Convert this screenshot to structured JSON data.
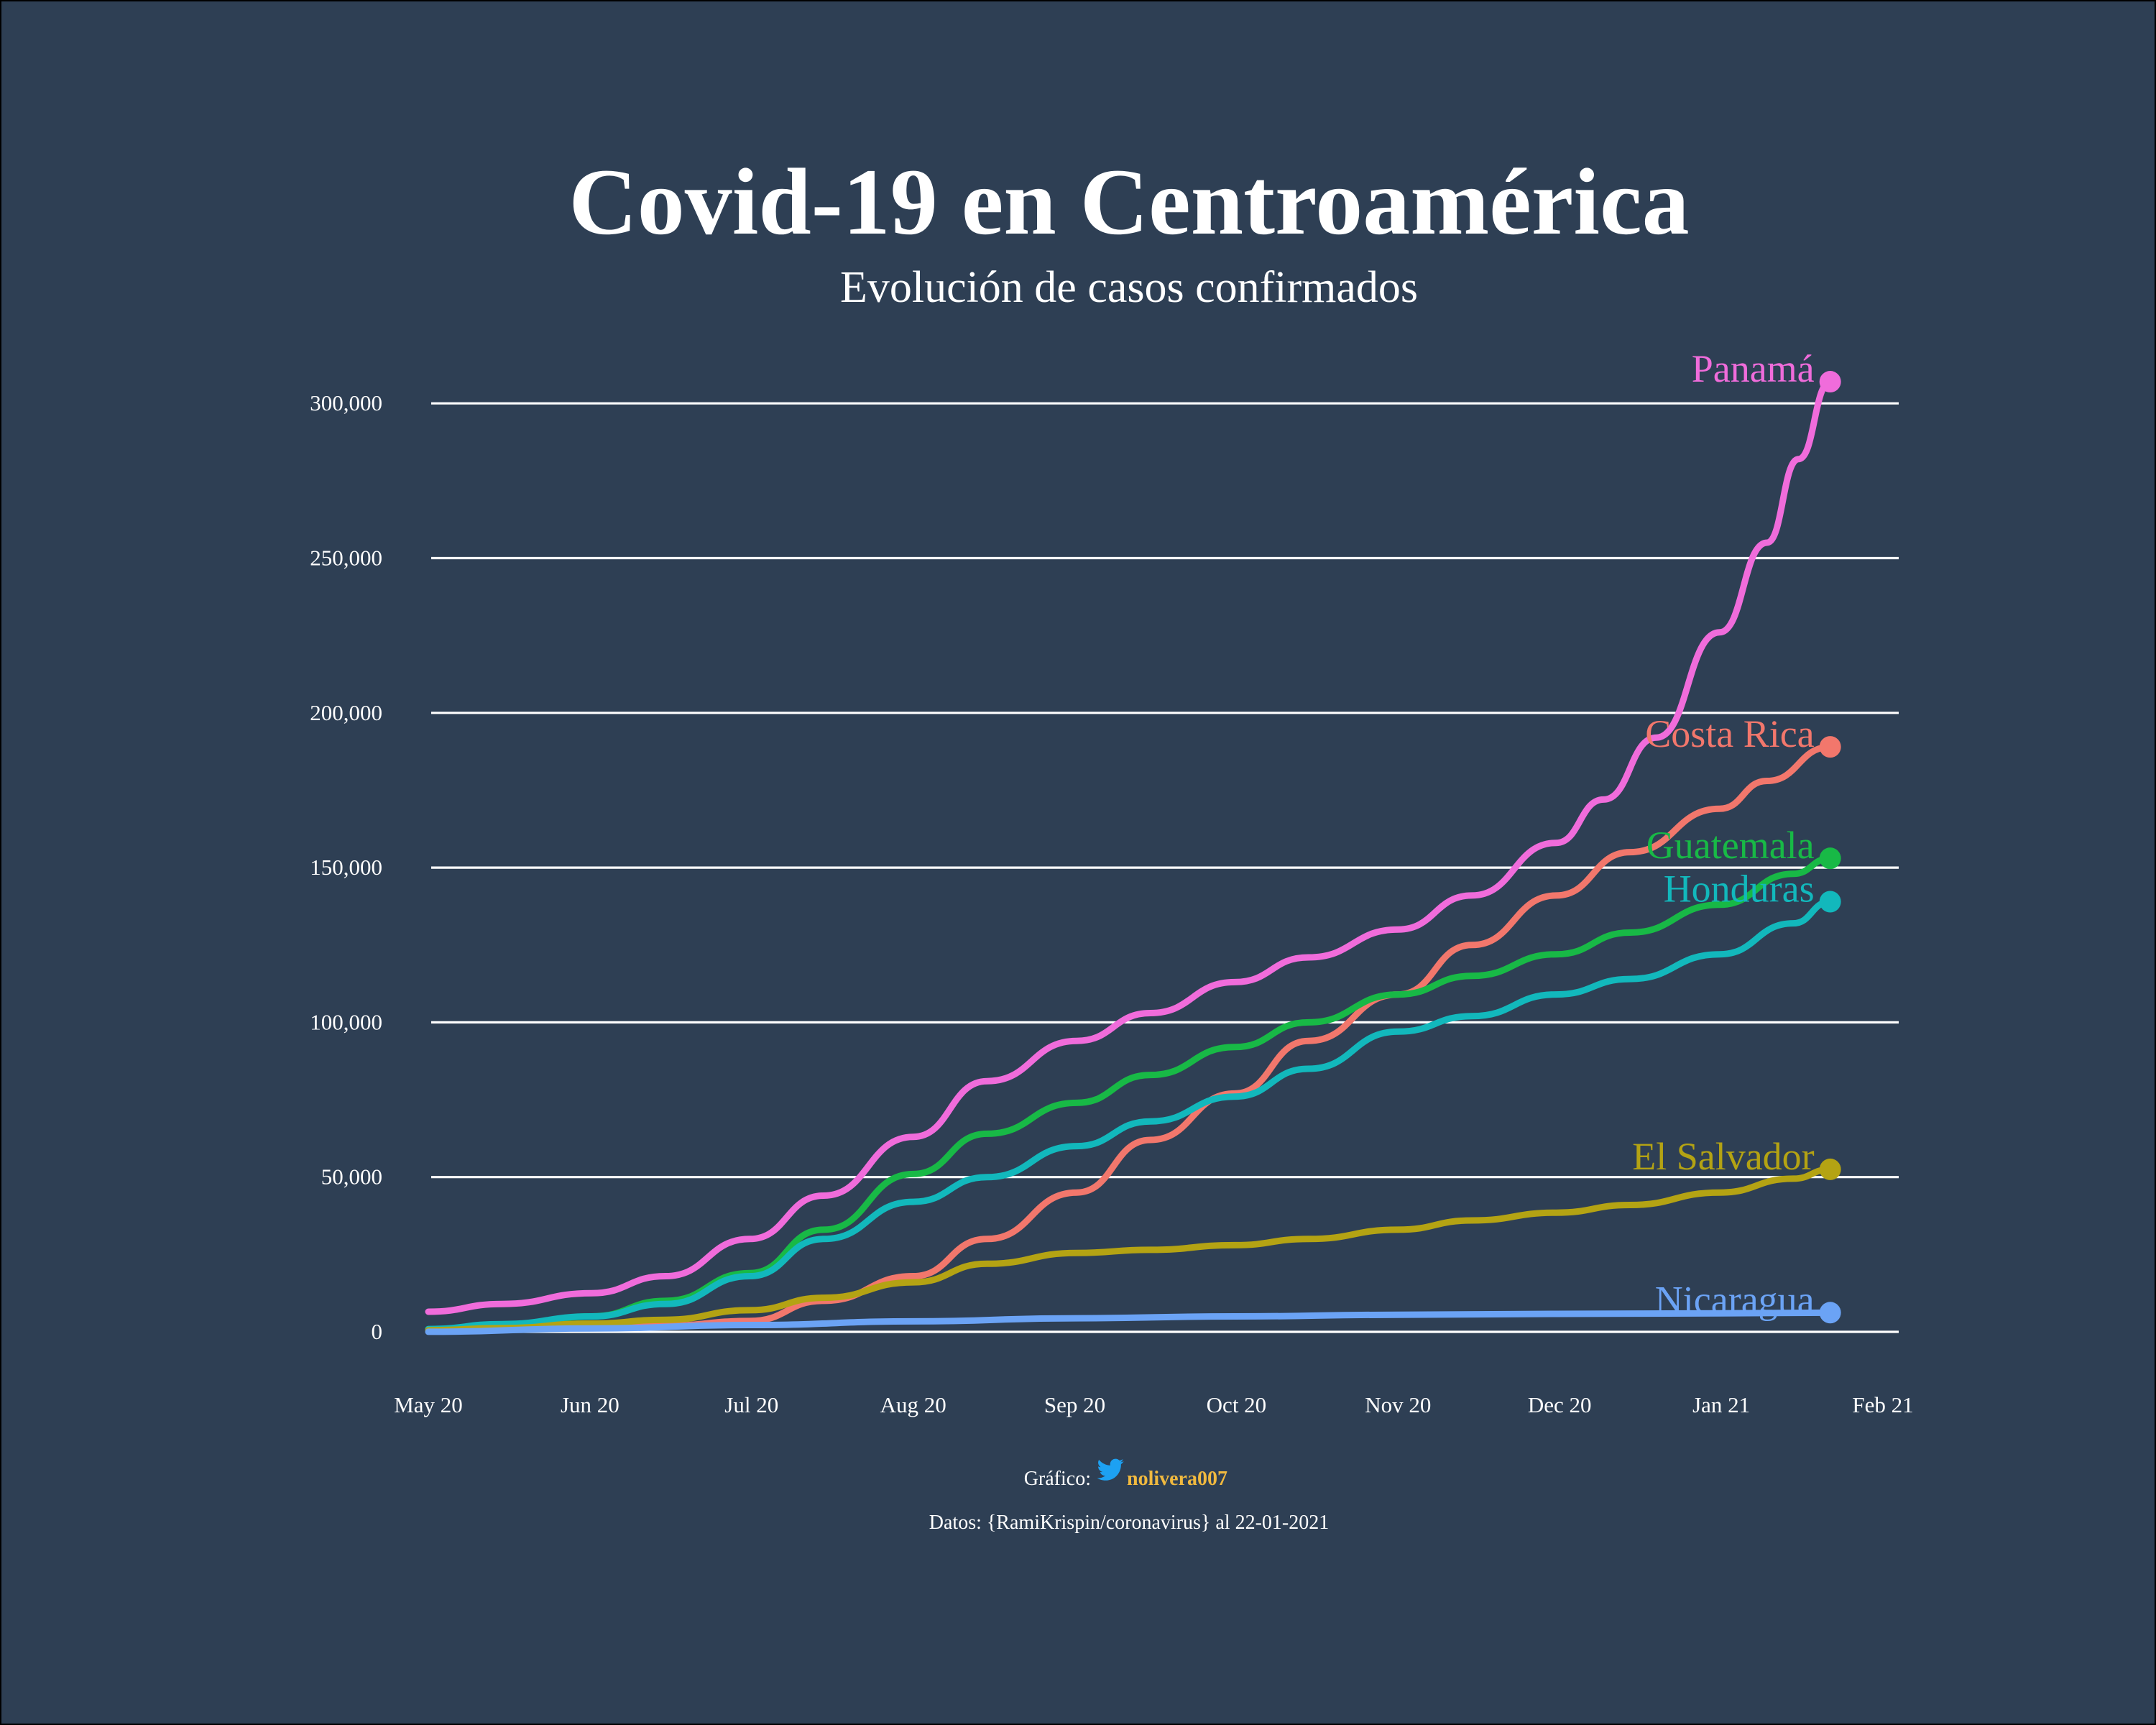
{
  "chart_data": {
    "type": "line",
    "title": "Covid-19 en Centroamérica",
    "subtitle": "Evolución de casos confirmados",
    "x_ticks": [
      "May 20",
      "Jun 20",
      "Jul 20",
      "Aug 20",
      "Sep 20",
      "Oct 20",
      "Nov 20",
      "Dec 20",
      "Jan 21",
      "Feb 21"
    ],
    "x_range": [
      "2020-05-01",
      "2021-02-01"
    ],
    "y_ticks": [
      "0",
      "50,000",
      "100,000",
      "150,000",
      "200,000",
      "250,000",
      "300,000"
    ],
    "ylim": [
      -12000,
      315000
    ],
    "grid": "horizontal",
    "legend": "direct labels at line ends",
    "series": [
      {
        "name": "Panamá",
        "color": "#f06cdb",
        "points": [
          [
            "2020-05-01",
            6500
          ],
          [
            "2020-05-15",
            9000
          ],
          [
            "2020-06-01",
            12500
          ],
          [
            "2020-06-15",
            18000
          ],
          [
            "2020-07-01",
            30000
          ],
          [
            "2020-07-15",
            44000
          ],
          [
            "2020-08-01",
            63000
          ],
          [
            "2020-08-15",
            81000
          ],
          [
            "2020-09-01",
            94000
          ],
          [
            "2020-09-15",
            103000
          ],
          [
            "2020-10-01",
            113000
          ],
          [
            "2020-10-15",
            121000
          ],
          [
            "2020-11-01",
            130000
          ],
          [
            "2020-11-15",
            141000
          ],
          [
            "2020-12-01",
            158000
          ],
          [
            "2020-12-10",
            172000
          ],
          [
            "2020-12-20",
            192000
          ],
          [
            "2021-01-01",
            226000
          ],
          [
            "2021-01-10",
            255000
          ],
          [
            "2021-01-16",
            282000
          ],
          [
            "2021-01-22",
            307000
          ]
        ]
      },
      {
        "name": "Costa Rica",
        "color": "#f2776c",
        "points": [
          [
            "2020-05-01",
            700
          ],
          [
            "2020-06-01",
            1200
          ],
          [
            "2020-06-15",
            2000
          ],
          [
            "2020-07-01",
            3500
          ],
          [
            "2020-07-15",
            10000
          ],
          [
            "2020-08-01",
            18000
          ],
          [
            "2020-08-15",
            30000
          ],
          [
            "2020-09-01",
            45000
          ],
          [
            "2020-09-15",
            62000
          ],
          [
            "2020-10-01",
            77000
          ],
          [
            "2020-10-15",
            94000
          ],
          [
            "2020-11-01",
            109000
          ],
          [
            "2020-11-15",
            125000
          ],
          [
            "2020-12-01",
            141000
          ],
          [
            "2020-12-15",
            155000
          ],
          [
            "2021-01-01",
            169000
          ],
          [
            "2021-01-10",
            178000
          ],
          [
            "2021-01-22",
            189000
          ]
        ]
      },
      {
        "name": "Guatemala",
        "color": "#18b946",
        "points": [
          [
            "2020-05-01",
            600
          ],
          [
            "2020-05-15",
            1500
          ],
          [
            "2020-06-01",
            5000
          ],
          [
            "2020-06-15",
            10000
          ],
          [
            "2020-07-01",
            19000
          ],
          [
            "2020-07-15",
            33000
          ],
          [
            "2020-08-01",
            51000
          ],
          [
            "2020-08-15",
            64000
          ],
          [
            "2020-09-01",
            74000
          ],
          [
            "2020-09-15",
            83000
          ],
          [
            "2020-10-01",
            92000
          ],
          [
            "2020-10-15",
            100000
          ],
          [
            "2020-11-01",
            109000
          ],
          [
            "2020-11-15",
            115000
          ],
          [
            "2020-12-01",
            122000
          ],
          [
            "2020-12-15",
            129000
          ],
          [
            "2021-01-01",
            138000
          ],
          [
            "2021-01-15",
            148000
          ],
          [
            "2021-01-22",
            153000
          ]
        ]
      },
      {
        "name": "Honduras",
        "color": "#12b8bc",
        "points": [
          [
            "2020-05-01",
            900
          ],
          [
            "2020-05-15",
            2500
          ],
          [
            "2020-06-01",
            5000
          ],
          [
            "2020-06-15",
            9000
          ],
          [
            "2020-07-01",
            18000
          ],
          [
            "2020-07-15",
            30000
          ],
          [
            "2020-08-01",
            42000
          ],
          [
            "2020-08-15",
            50000
          ],
          [
            "2020-09-01",
            60000
          ],
          [
            "2020-09-15",
            68000
          ],
          [
            "2020-10-01",
            76000
          ],
          [
            "2020-10-15",
            85000
          ],
          [
            "2020-11-01",
            97000
          ],
          [
            "2020-11-15",
            102000
          ],
          [
            "2020-12-01",
            109000
          ],
          [
            "2020-12-15",
            114000
          ],
          [
            "2021-01-01",
            122000
          ],
          [
            "2021-01-15",
            132000
          ],
          [
            "2021-01-22",
            139000
          ]
        ]
      },
      {
        "name": "El Salvador",
        "color": "#b4a313",
        "points": [
          [
            "2020-05-01",
            500
          ],
          [
            "2020-05-15",
            1200
          ],
          [
            "2020-06-01",
            2700
          ],
          [
            "2020-06-15",
            3900
          ],
          [
            "2020-07-01",
            7000
          ],
          [
            "2020-07-15",
            11000
          ],
          [
            "2020-08-01",
            16000
          ],
          [
            "2020-08-15",
            22000
          ],
          [
            "2020-09-01",
            25500
          ],
          [
            "2020-09-15",
            26500
          ],
          [
            "2020-10-01",
            28000
          ],
          [
            "2020-10-15",
            30000
          ],
          [
            "2020-11-01",
            33000
          ],
          [
            "2020-11-15",
            36000
          ],
          [
            "2020-12-01",
            38500
          ],
          [
            "2020-12-15",
            41000
          ],
          [
            "2021-01-01",
            45000
          ],
          [
            "2021-01-15",
            49500
          ],
          [
            "2021-01-22",
            52500
          ]
        ]
      },
      {
        "name": "Nicaragua",
        "color": "#6ba3f5",
        "points": [
          [
            "2020-05-01",
            20
          ],
          [
            "2020-06-01",
            1100
          ],
          [
            "2020-07-01",
            2200
          ],
          [
            "2020-08-01",
            3400
          ],
          [
            "2020-09-01",
            4400
          ],
          [
            "2020-10-01",
            5000
          ],
          [
            "2020-11-01",
            5500
          ],
          [
            "2020-12-01",
            5800
          ],
          [
            "2021-01-01",
            6000
          ],
          [
            "2021-01-22",
            6200
          ]
        ]
      }
    ]
  },
  "caption": {
    "grafico_label": "Gráfico:",
    "handle": "nolivera007",
    "twitter_icon": "twitter-bird-icon",
    "icon_color": "#1da1f2",
    "source": "Datos: {RamiKrispin/coronavirus} al 22-01-2021"
  }
}
